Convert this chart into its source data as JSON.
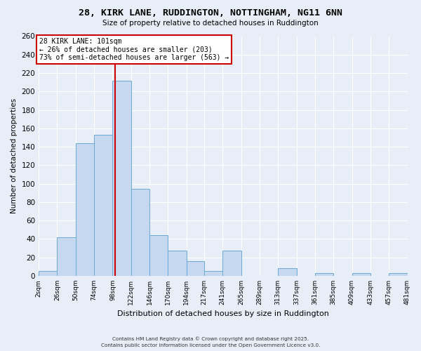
{
  "title": "28, KIRK LANE, RUDDINGTON, NOTTINGHAM, NG11 6NN",
  "subtitle": "Size of property relative to detached houses in Ruddington",
  "xlabel": "Distribution of detached houses by size in Ruddington",
  "ylabel": "Number of detached properties",
  "bar_color": "#c5d8f0",
  "bar_edge_color": "#6aaad4",
  "background_color": "#e8eef8",
  "grid_color": "#ffffff",
  "bins": [
    2,
    26,
    50,
    74,
    98,
    122,
    146,
    170,
    194,
    217,
    241,
    265,
    289,
    313,
    337,
    361,
    385,
    409,
    433,
    457,
    481
  ],
  "counts": [
    5,
    42,
    144,
    153,
    212,
    94,
    44,
    27,
    16,
    5,
    27,
    0,
    0,
    8,
    0,
    3,
    0,
    3,
    0,
    3
  ],
  "vline_x": 101,
  "vline_color": "#cc0000",
  "annotation_title": "28 KIRK LANE: 101sqm",
  "annotation_line1": "← 26% of detached houses are smaller (203)",
  "annotation_line2": "73% of semi-detached houses are larger (563) →",
  "annotation_box_color": "#ffffff",
  "annotation_box_edge": "#cc0000",
  "ylim": [
    0,
    260
  ],
  "yticks": [
    0,
    20,
    40,
    60,
    80,
    100,
    120,
    140,
    160,
    180,
    200,
    220,
    240,
    260
  ],
  "tick_labels": [
    "2sqm",
    "26sqm",
    "50sqm",
    "74sqm",
    "98sqm",
    "122sqm",
    "146sqm",
    "170sqm",
    "194sqm",
    "217sqm",
    "241sqm",
    "265sqm",
    "289sqm",
    "313sqm",
    "337sqm",
    "361sqm",
    "385sqm",
    "409sqm",
    "433sqm",
    "457sqm",
    "481sqm"
  ],
  "footnote1": "Contains HM Land Registry data © Crown copyright and database right 2025.",
  "footnote2": "Contains public sector information licensed under the Open Government Licence v3.0."
}
